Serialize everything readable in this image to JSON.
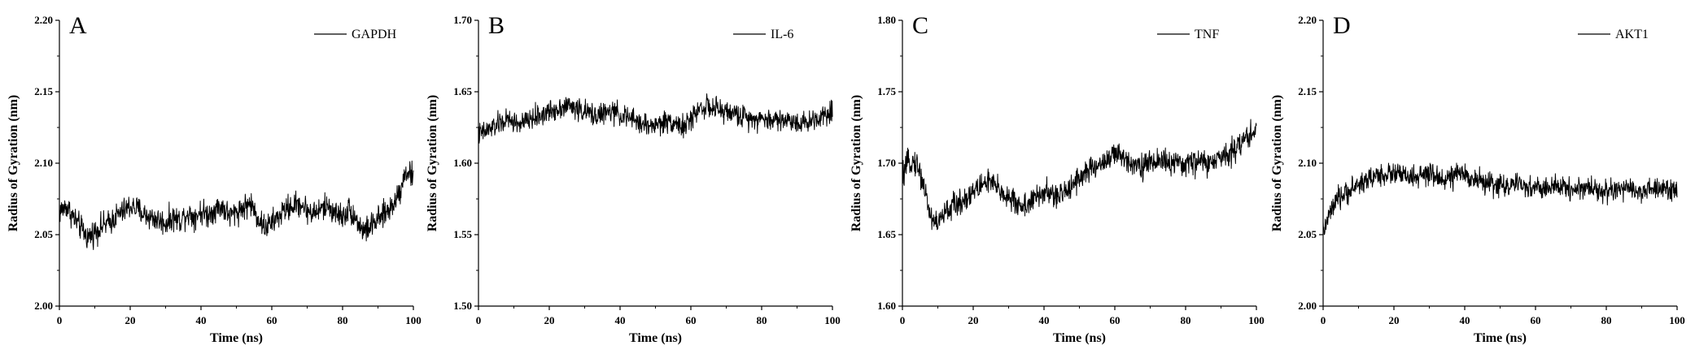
{
  "chart_data": [
    {
      "type": "line",
      "panel_label": "A",
      "legend": "GAPDH",
      "legend_position": "top-right",
      "xlabel": "Time (ns)",
      "ylabel": "Radius of Gyration (nm)",
      "xlim": [
        0,
        100
      ],
      "ylim": [
        2.0,
        2.2
      ],
      "xticks": [
        "0",
        "20",
        "40",
        "60",
        "80",
        "100"
      ],
      "yticks": [
        "2.00",
        "2.05",
        "2.10",
        "2.15",
        "2.20"
      ],
      "grid": false,
      "series": [
        {
          "name": "GAPDH",
          "x": [
            0,
            2,
            4,
            6,
            8,
            10,
            12,
            14,
            16,
            18,
            20,
            22,
            24,
            26,
            28,
            30,
            32,
            34,
            36,
            38,
            40,
            42,
            44,
            46,
            48,
            50,
            52,
            54,
            56,
            58,
            60,
            62,
            64,
            66,
            68,
            70,
            72,
            74,
            76,
            78,
            80,
            82,
            84,
            86,
            88,
            90,
            92,
            94,
            96,
            98,
            100
          ],
          "y": [
            2.066,
            2.07,
            2.062,
            2.055,
            2.048,
            2.052,
            2.056,
            2.058,
            2.063,
            2.066,
            2.07,
            2.068,
            2.064,
            2.062,
            2.06,
            2.058,
            2.062,
            2.06,
            2.065,
            2.063,
            2.066,
            2.064,
            2.068,
            2.07,
            2.063,
            2.066,
            2.069,
            2.072,
            2.062,
            2.055,
            2.058,
            2.063,
            2.068,
            2.07,
            2.072,
            2.067,
            2.065,
            2.068,
            2.07,
            2.065,
            2.063,
            2.068,
            2.06,
            2.052,
            2.056,
            2.06,
            2.065,
            2.07,
            2.08,
            2.095,
            2.09
          ],
          "noise": 0.008
        }
      ]
    },
    {
      "type": "line",
      "panel_label": "B",
      "legend": "IL-6",
      "legend_position": "top-right",
      "xlabel": "Time (ns)",
      "ylabel": "Radius of Gyration (nm)",
      "xlim": [
        0,
        100
      ],
      "ylim": [
        1.5,
        1.7
      ],
      "xticks": [
        "0",
        "20",
        "40",
        "60",
        "80",
        "100"
      ],
      "yticks": [
        "1.50",
        "1.55",
        "1.60",
        "1.65",
        "1.70"
      ],
      "grid": false,
      "series": [
        {
          "name": "IL-6",
          "x": [
            0,
            2,
            4,
            6,
            8,
            10,
            12,
            14,
            16,
            18,
            20,
            22,
            24,
            26,
            28,
            30,
            32,
            34,
            36,
            38,
            40,
            42,
            44,
            46,
            48,
            50,
            52,
            54,
            56,
            58,
            60,
            62,
            64,
            66,
            68,
            70,
            72,
            74,
            76,
            78,
            80,
            82,
            84,
            86,
            88,
            90,
            92,
            94,
            96,
            98,
            100
          ],
          "y": [
            1.62,
            1.622,
            1.625,
            1.628,
            1.63,
            1.629,
            1.627,
            1.63,
            1.632,
            1.634,
            1.636,
            1.638,
            1.64,
            1.64,
            1.638,
            1.636,
            1.634,
            1.634,
            1.635,
            1.636,
            1.634,
            1.632,
            1.63,
            1.628,
            1.626,
            1.627,
            1.628,
            1.63,
            1.628,
            1.625,
            1.63,
            1.638,
            1.64,
            1.638,
            1.637,
            1.636,
            1.635,
            1.633,
            1.632,
            1.632,
            1.631,
            1.63,
            1.631,
            1.63,
            1.63,
            1.629,
            1.628,
            1.63,
            1.632,
            1.635,
            1.637
          ],
          "noise": 0.007
        }
      ]
    },
    {
      "type": "line",
      "panel_label": "C",
      "legend": "TNF",
      "legend_position": "top-right",
      "xlabel": "Time (ns)",
      "ylabel": "Radius of Gyration (nm)",
      "xlim": [
        0,
        100
      ],
      "ylim": [
        1.6,
        1.8
      ],
      "xticks": [
        "0",
        "20",
        "40",
        "60",
        "80",
        "100"
      ],
      "yticks": [
        "1.60",
        "1.65",
        "1.70",
        "1.75",
        "1.80"
      ],
      "grid": false,
      "series": [
        {
          "name": "TNF",
          "x": [
            0,
            2,
            4,
            6,
            8,
            10,
            12,
            14,
            16,
            18,
            20,
            22,
            24,
            26,
            28,
            30,
            32,
            34,
            36,
            38,
            40,
            42,
            44,
            46,
            48,
            50,
            52,
            54,
            56,
            58,
            60,
            62,
            64,
            66,
            68,
            70,
            72,
            74,
            76,
            78,
            80,
            82,
            84,
            86,
            88,
            90,
            92,
            94,
            96,
            98,
            100
          ],
          "y": [
            1.69,
            1.702,
            1.7,
            1.685,
            1.662,
            1.658,
            1.665,
            1.67,
            1.672,
            1.676,
            1.68,
            1.684,
            1.688,
            1.684,
            1.68,
            1.676,
            1.672,
            1.67,
            1.672,
            1.676,
            1.68,
            1.678,
            1.676,
            1.68,
            1.686,
            1.69,
            1.694,
            1.696,
            1.7,
            1.703,
            1.706,
            1.704,
            1.702,
            1.7,
            1.698,
            1.7,
            1.702,
            1.702,
            1.7,
            1.698,
            1.7,
            1.7,
            1.702,
            1.7,
            1.7,
            1.704,
            1.708,
            1.71,
            1.715,
            1.72,
            1.724
          ],
          "noise": 0.008
        }
      ]
    },
    {
      "type": "line",
      "panel_label": "D",
      "legend": "AKT1",
      "legend_position": "top-right",
      "xlabel": "Time (ns)",
      "ylabel": "Radius of Gyration (nm)",
      "xlim": [
        0,
        100
      ],
      "ylim": [
        2.0,
        2.2
      ],
      "xticks": [
        "0",
        "20",
        "40",
        "60",
        "80",
        "100"
      ],
      "yticks": [
        "2.00",
        "2.05",
        "2.10",
        "2.15",
        "2.20"
      ],
      "grid": false,
      "series": [
        {
          "name": "AKT1",
          "x": [
            0,
            2,
            4,
            6,
            8,
            10,
            12,
            14,
            16,
            18,
            20,
            22,
            24,
            26,
            28,
            30,
            32,
            34,
            36,
            38,
            40,
            42,
            44,
            46,
            48,
            50,
            52,
            54,
            56,
            58,
            60,
            62,
            64,
            66,
            68,
            70,
            72,
            74,
            76,
            78,
            80,
            82,
            84,
            86,
            88,
            90,
            92,
            94,
            96,
            98,
            100
          ],
          "y": [
            2.052,
            2.065,
            2.074,
            2.078,
            2.082,
            2.085,
            2.088,
            2.09,
            2.092,
            2.092,
            2.093,
            2.092,
            2.09,
            2.09,
            2.091,
            2.092,
            2.09,
            2.089,
            2.09,
            2.092,
            2.092,
            2.09,
            2.088,
            2.086,
            2.085,
            2.085,
            2.084,
            2.085,
            2.084,
            2.083,
            2.083,
            2.082,
            2.083,
            2.083,
            2.084,
            2.082,
            2.082,
            2.083,
            2.083,
            2.081,
            2.08,
            2.081,
            2.082,
            2.081,
            2.081,
            2.08,
            2.081,
            2.082,
            2.081,
            2.082,
            2.083
          ],
          "noise": 0.007
        }
      ]
    }
  ]
}
